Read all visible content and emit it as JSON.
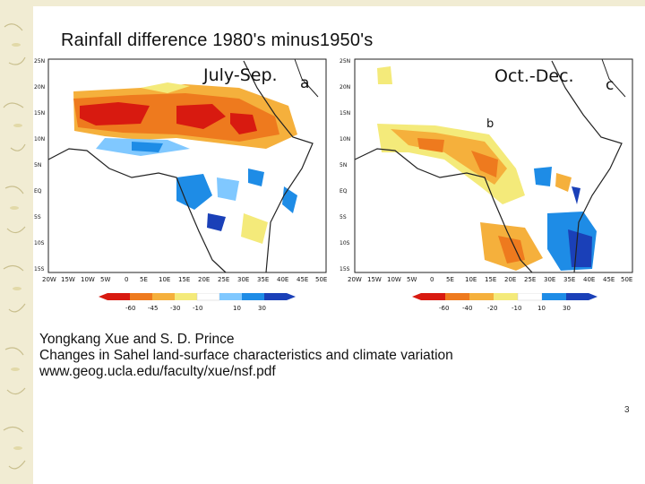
{
  "slide": {
    "title": "Rainfall difference 1980's minus1950's",
    "page_number": "3"
  },
  "panels": [
    {
      "season": "July-Sep.",
      "panel_letter": "a",
      "map_annotation": "",
      "lat_labels": [
        "25N",
        "20N",
        "15N",
        "10N",
        "5N",
        "EQ",
        "5S",
        "10S",
        "15S"
      ],
      "lon_labels": [
        "20W",
        "15W",
        "10W",
        "5W",
        "0",
        "5E",
        "10E",
        "15E",
        "20E",
        "25E",
        "30E",
        "35E",
        "40E",
        "45E",
        "50E"
      ],
      "colorbar": {
        "ticks": [
          "-60",
          "-45",
          "-30",
          "-10",
          "10",
          "30"
        ],
        "colors": [
          "#d81a10",
          "#ee7a1e",
          "#f5b03c",
          "#f4ea7a",
          "#ffffff",
          "#80c8ff",
          "#1e8ce6",
          "#1a40b8"
        ]
      }
    },
    {
      "season": "Oct.-Dec.",
      "panel_letter": "c",
      "map_annotation": "b",
      "lat_labels": [
        "25N",
        "20N",
        "15N",
        "10N",
        "5N",
        "EQ",
        "5S",
        "10S",
        "15S"
      ],
      "lon_labels": [
        "20W",
        "15W",
        "10W",
        "5W",
        "0",
        "5E",
        "10E",
        "15E",
        "20E",
        "25E",
        "30E",
        "35E",
        "40E",
        "45E",
        "50E"
      ],
      "colorbar": {
        "ticks": [
          "-60",
          "-40",
          "-20",
          "-10",
          "10",
          "30"
        ],
        "colors": [
          "#d81a10",
          "#ee7a1e",
          "#f5b03c",
          "#f4ea7a",
          "#ffffff",
          "#1e8ce6",
          "#1a40b8"
        ]
      }
    }
  ],
  "credits": {
    "authors": "Yongkang Xue and S. D. Prince",
    "paper_title": "Changes in Sahel land-surface characteristics and climate variation",
    "url": "www.geog.ucla.edu/faculty/xue/nsf.pdf"
  }
}
